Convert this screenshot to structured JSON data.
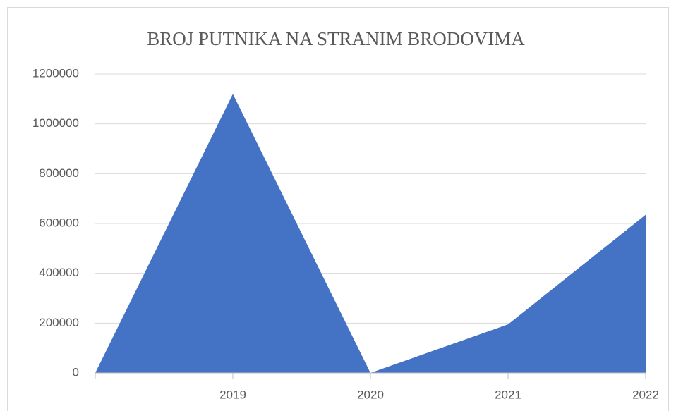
{
  "chart_data": {
    "type": "area",
    "title": "BROJ PUTNIKA NA STRANIM BRODOVIMA",
    "categories": [
      null,
      "2019",
      "2020",
      "2021",
      "2022"
    ],
    "values": [
      0,
      1120000,
      0,
      195000,
      635000
    ],
    "color": "#4472c4",
    "ylim": [
      0,
      1200000
    ],
    "yticks": [
      0,
      200000,
      400000,
      600000,
      800000,
      1000000,
      1200000
    ],
    "grid": true
  }
}
